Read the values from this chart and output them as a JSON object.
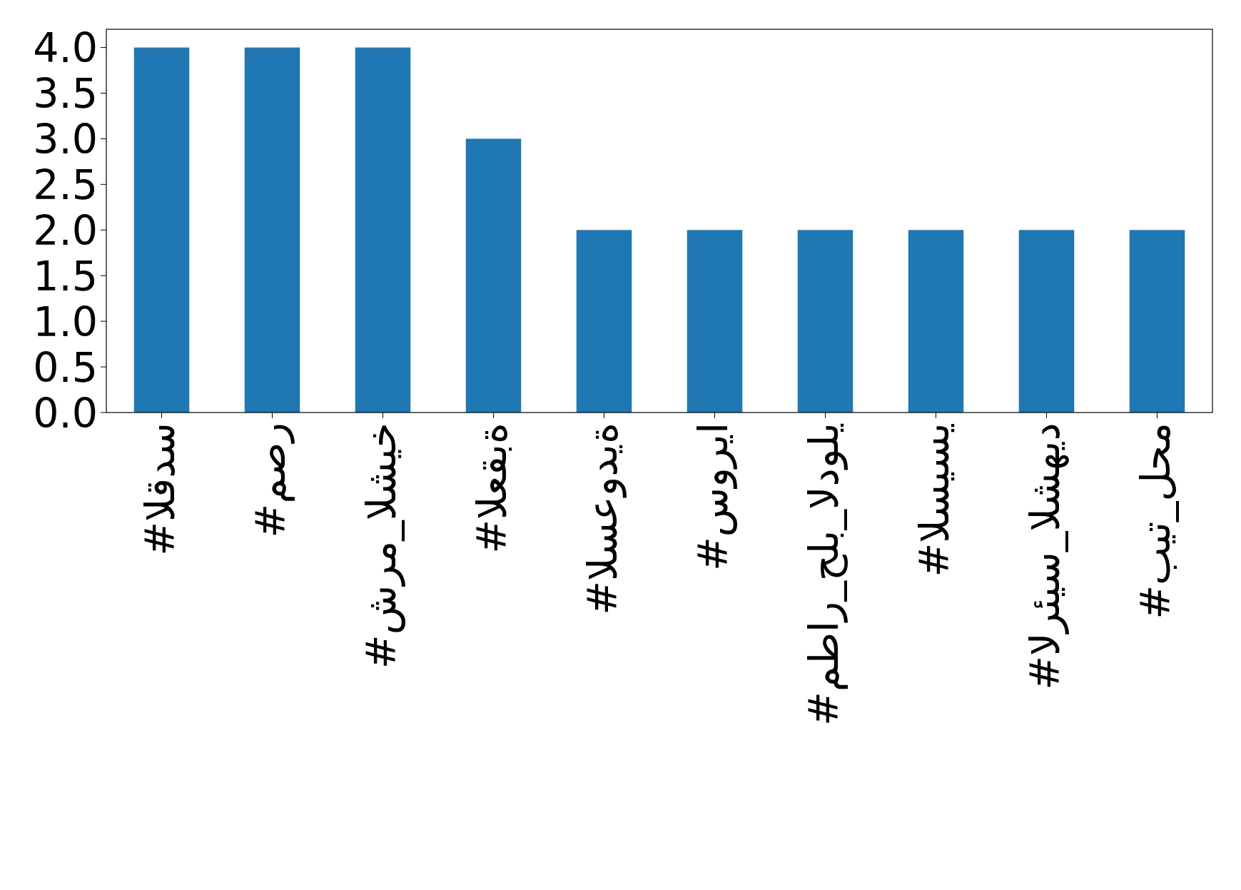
{
  "chart_data": {
    "type": "bar",
    "categories": [
      "#القدس",
      "#مصر",
      "#شرم_الشيخ",
      "#العقبة",
      "#السعودية",
      "#سوريا",
      "#مطار_حلب_الدولي",
      "#السيسي",
      "#الرئيس_الشهيد",
      "#بيت_لحم"
    ],
    "values": [
      4,
      4,
      4,
      3,
      2,
      2,
      2,
      2,
      2,
      2
    ],
    "color": "#1f77b4",
    "ylim": [
      0,
      4.2
    ],
    "yticks": [
      {
        "value": 0,
        "label": "0.0"
      },
      {
        "value": 0.5,
        "label": "0.5"
      },
      {
        "value": 1,
        "label": "1.0"
      },
      {
        "value": 1.5,
        "label": "1.5"
      },
      {
        "value": 2,
        "label": "2.0"
      },
      {
        "value": 2.5,
        "label": "2.5"
      },
      {
        "value": 3,
        "label": "3.0"
      },
      {
        "value": 3.5,
        "label": "3.5"
      },
      {
        "value": 4,
        "label": "4.0"
      }
    ],
    "grid": false
  }
}
